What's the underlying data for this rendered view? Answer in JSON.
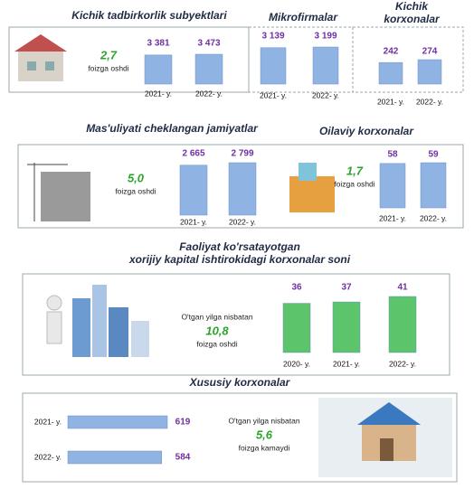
{
  "chart_data": [
    {
      "type": "bar",
      "title": [
        "Kichik tadbirkorlik subyektlari"
      ],
      "categories": [
        "2021- y.",
        "2022- y."
      ],
      "values": [
        3381,
        3473
      ],
      "value_labels": [
        "3 381",
        "3 473"
      ],
      "color": "#8fb4e3",
      "annotation": {
        "value": "2,7",
        "text": "foizga oshdi"
      }
    },
    {
      "type": "bar",
      "title": [
        "Mikrofirmalar"
      ],
      "categories": [
        "2021- y.",
        "2022- y."
      ],
      "values": [
        3139,
        3199
      ],
      "value_labels": [
        "3 139",
        "3 199"
      ],
      "color": "#8fb4e3"
    },
    {
      "type": "bar",
      "title": [
        "Kichik",
        "korxonalar"
      ],
      "categories": [
        "2021- y.",
        "2022- y."
      ],
      "values": [
        242,
        274
      ],
      "color": "#8fb4e3"
    },
    {
      "type": "bar",
      "title": [
        "Mas'uliyati cheklangan jamiyatlar"
      ],
      "categories": [
        "2021- y.",
        "2022- y."
      ],
      "values": [
        2665,
        2799
      ],
      "value_labels": [
        "2 665",
        "2 799"
      ],
      "color": "#8fb4e3",
      "annotation": {
        "value": "5,0",
        "text": "foizga oshdi"
      }
    },
    {
      "type": "bar",
      "title": [
        "Oilaviy korxonalar"
      ],
      "categories": [
        "2021- y.",
        "2022- y."
      ],
      "values": [
        58,
        59
      ],
      "color": "#8fb4e3",
      "annotation": {
        "value": "1,7",
        "text": "foizga oshdi"
      }
    },
    {
      "type": "bar",
      "title": [
        "Faoliyat ko'rsatayotgan",
        "xorijiy kapital ishtirokidagi korxonalar soni"
      ],
      "categories": [
        "2020- y.",
        "2021- y.",
        "2022- y."
      ],
      "values": [
        36,
        37,
        41
      ],
      "color": "#5cc46b",
      "annotation": {
        "lead": "O'tgan yilga nisbatan",
        "value": "10,8",
        "text": "foizga oshdi"
      }
    },
    {
      "type": "barh",
      "title": [
        "Xususiy korxonalar"
      ],
      "categories": [
        "2021- y.",
        "2022- y."
      ],
      "values": [
        619,
        584
      ],
      "color": "#8fb4e3",
      "annotation": {
        "lead": "O'tgan yilga nisbatan",
        "value": "5,6",
        "text": "foizga kamaydi"
      }
    }
  ]
}
